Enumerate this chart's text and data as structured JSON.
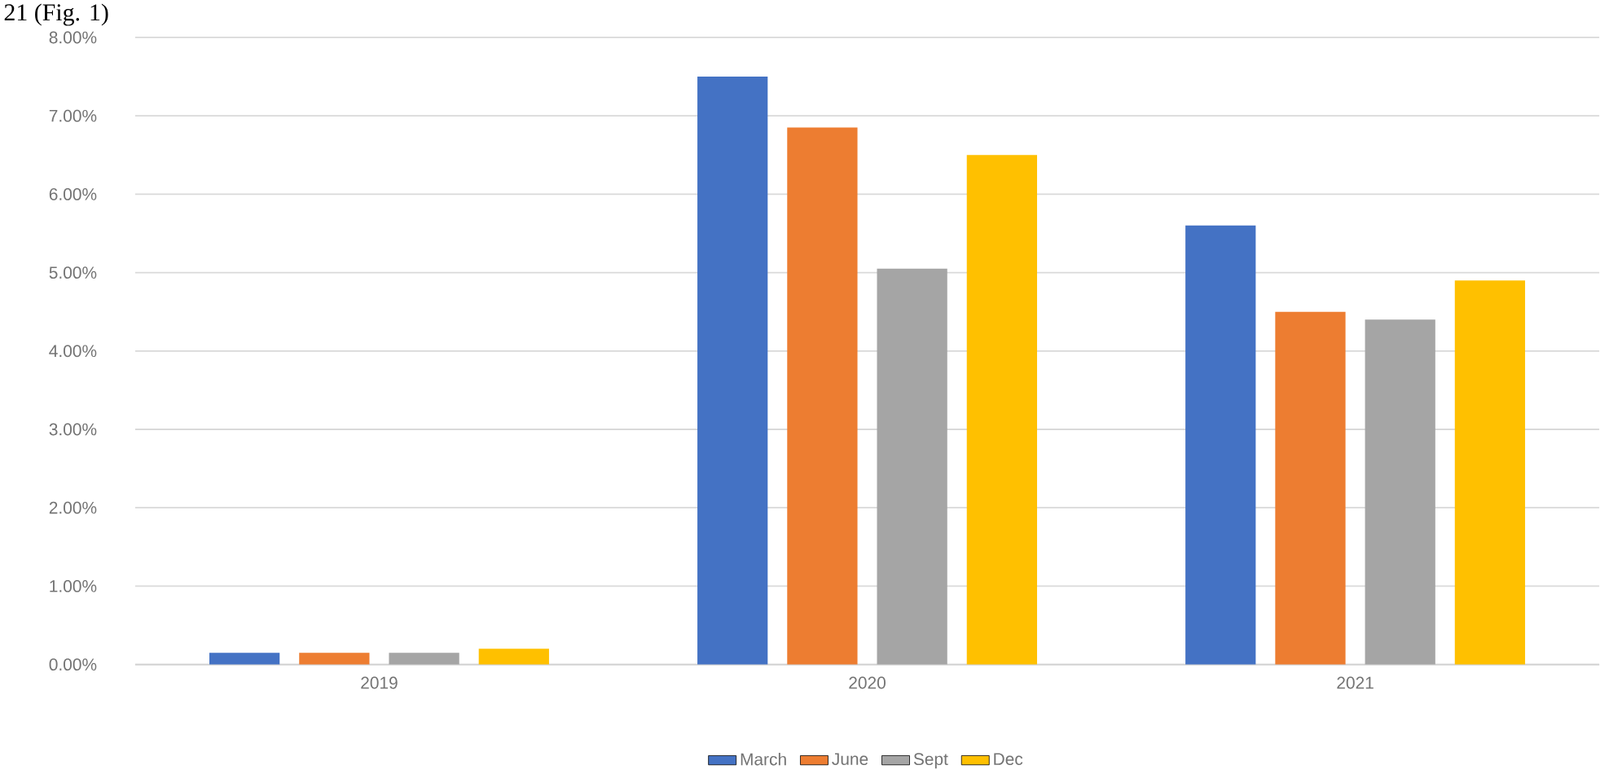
{
  "chart_data": {
    "type": "bar",
    "annotations": [
      "21 (Fig. 1)"
    ],
    "categories": [
      "2019",
      "2020",
      "2021"
    ],
    "series": [
      {
        "name": "March",
        "color": "#4472c4",
        "values": [
          0.15,
          7.5,
          5.6
        ]
      },
      {
        "name": "June",
        "color": "#ed7d31",
        "values": [
          0.15,
          6.85,
          4.5
        ]
      },
      {
        "name": "Sept",
        "color": "#a5a5a5",
        "values": [
          0.15,
          5.05,
          4.4
        ]
      },
      {
        "name": "Dec",
        "color": "#ffc000",
        "values": [
          0.2,
          6.5,
          4.9
        ]
      }
    ],
    "ylim": [
      0,
      8
    ],
    "yticks": [
      {
        "value": 0,
        "label": "0.00%"
      },
      {
        "value": 1,
        "label": "1.00%"
      },
      {
        "value": 2,
        "label": "2.00%"
      },
      {
        "value": 3,
        "label": "3.00%"
      },
      {
        "value": 4,
        "label": "4.00%"
      },
      {
        "value": 5,
        "label": "5.00%"
      },
      {
        "value": 6,
        "label": "6.00%"
      },
      {
        "value": 7,
        "label": "7.00%"
      },
      {
        "value": 8,
        "label": "8.00%"
      }
    ],
    "grid": "y",
    "legend": "bottom"
  }
}
